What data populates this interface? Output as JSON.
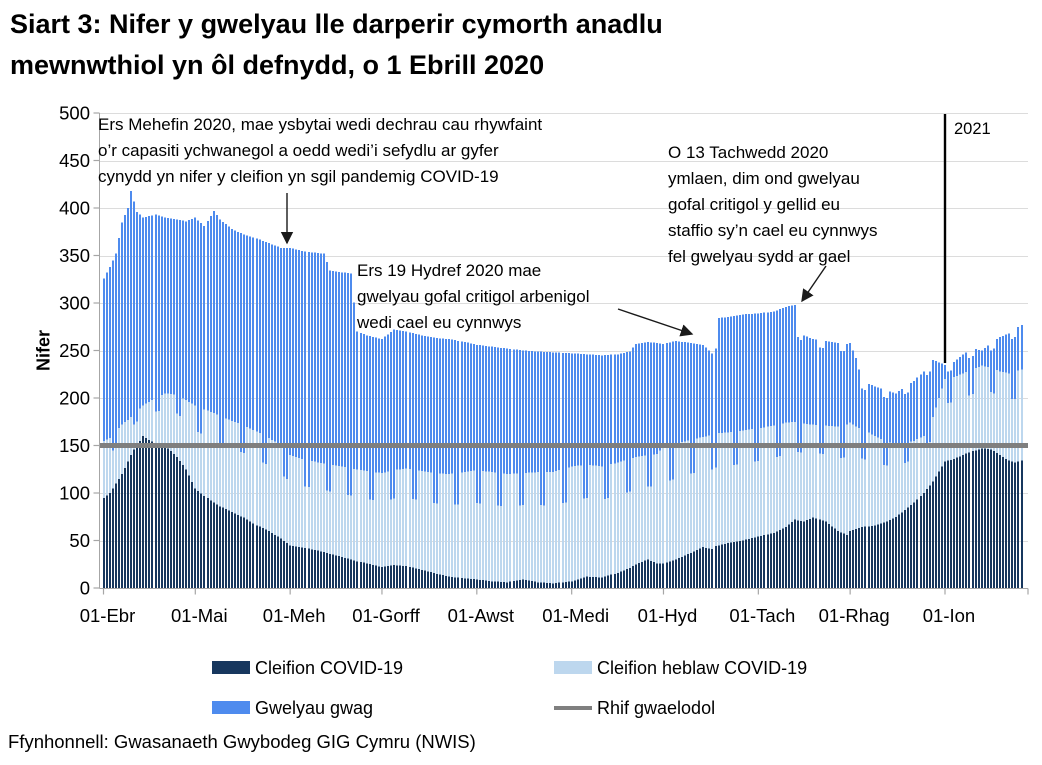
{
  "title": {
    "line1": "Siart 3: Nifer y gwelyau lle darperir cymorth anadlu",
    "line2": "mewnwthiol yn ôl defnydd, o 1 Ebrill 2020"
  },
  "source": {
    "text": "Ffynhonnell: Gwasanaeth Gwybodeg GIG Cymru (NWIS)"
  },
  "annotations": [
    {
      "lines": [
        "Ers Mehefin 2020, mae ysbytai wedi dechrau cau rhywfaint",
        "o’r capasiti ychwanegol a oedd wedi’i sefydlu ar gyfer",
        "cynydd yn nifer y cleifion yn sgil pandemig COVID-19"
      ]
    },
    {
      "lines": [
        "Ers 19 Hydref 2020 mae",
        "gwelyau gofal critigol arbenigol",
        "wedi cael eu cynnwys"
      ]
    },
    {
      "lines": [
        "O 13 Tachwedd 2020",
        "ymlaen, dim ond gwelyau",
        "gofal critigol y gellid eu",
        "staffio sy’n cael eu cynnwys",
        "fel gwelyau sydd ar gael"
      ]
    }
  ],
  "legend": {
    "items": [
      {
        "label": "Cleifion COVID-19",
        "color": "#17375E",
        "type": "box"
      },
      {
        "label": "Cleifion heblaw COVID-19",
        "color": "#BDD7EE",
        "type": "box"
      },
      {
        "label": "Gwelyau gwag",
        "color": "#4E8BEE",
        "type": "box"
      },
      {
        "label": "Rhif gwaelodol",
        "color": "#7F7F7F",
        "type": "line"
      }
    ]
  },
  "chart_data": {
    "type": "bar",
    "stacked": true,
    "title": "Siart 3: Nifer y gwelyau lle darperir cymorth anadlu mewnwthiol yn ôl defnydd, o 1 Ebrill 2020",
    "ylabel": "Nifer",
    "ylim": [
      0,
      500
    ],
    "ytick_step": 50,
    "grid": "horizontal",
    "legend_position": "bottom",
    "x_tick_labels": [
      "01-Ebr",
      "01-Mai",
      "01-Meh",
      "01-Gorff",
      "01-Awst",
      "01-Medi",
      "01-Hyd",
      "01-Tach",
      "01-Rhag",
      "01-Ion"
    ],
    "x_tick_day_offsets": [
      0,
      30,
      61,
      91,
      122,
      153,
      183,
      214,
      244,
      275
    ],
    "days_total": 301,
    "series": [
      {
        "name": "Cleifion COVID-19",
        "color": "#17375E",
        "position": "bottom"
      },
      {
        "name": "Cleifion heblaw COVID-19",
        "color": "#BDD7EE",
        "position": "middle"
      },
      {
        "name": "Gwelyau gwag",
        "color": "#4E8BEE",
        "position": "top"
      }
    ],
    "baseline": {
      "name": "Rhif gwaelodol",
      "color": "#7F7F7F",
      "value": 150
    },
    "year_marker": {
      "label": "2021",
      "day": 275
    },
    "keyframes_format": [
      "day",
      "cleifion_covid",
      "cleifion_covid_plus_heblaw",
      "cyfanswm_gwelyau"
    ],
    "keyframes": [
      [
        0,
        95,
        155,
        326
      ],
      [
        2,
        100,
        158,
        338
      ],
      [
        4,
        110,
        165,
        352
      ],
      [
        6,
        120,
        172,
        385
      ],
      [
        8,
        133,
        177,
        400
      ],
      [
        9,
        140,
        180,
        418
      ],
      [
        10,
        146,
        183,
        407
      ],
      [
        11,
        150,
        186,
        396
      ],
      [
        13,
        160,
        192,
        390
      ],
      [
        17,
        152,
        200,
        393
      ],
      [
        20,
        150,
        205,
        390
      ],
      [
        24,
        138,
        203,
        388
      ],
      [
        27,
        125,
        198,
        386
      ],
      [
        30,
        105,
        192,
        390
      ],
      [
        33,
        97,
        188,
        381
      ],
      [
        36,
        90,
        184,
        397
      ],
      [
        38,
        86,
        181,
        388
      ],
      [
        42,
        80,
        176,
        378
      ],
      [
        46,
        74,
        171,
        372
      ],
      [
        50,
        66,
        165,
        368
      ],
      [
        54,
        60,
        158,
        363
      ],
      [
        58,
        52,
        150,
        358
      ],
      [
        61,
        45,
        140,
        358
      ],
      [
        66,
        42,
        135,
        354
      ],
      [
        72,
        38,
        131,
        352
      ],
      [
        74,
        36,
        130,
        334
      ],
      [
        81,
        30,
        126,
        331
      ],
      [
        83,
        28,
        125,
        270
      ],
      [
        86,
        26,
        123,
        266
      ],
      [
        91,
        22,
        121,
        262
      ],
      [
        95,
        24,
        124,
        272
      ],
      [
        99,
        23,
        126,
        270
      ],
      [
        104,
        19,
        123,
        266
      ],
      [
        109,
        15,
        121,
        263
      ],
      [
        113,
        12,
        120,
        262
      ],
      [
        118,
        10,
        122,
        259
      ],
      [
        122,
        9,
        124,
        256
      ],
      [
        127,
        7,
        122,
        254
      ],
      [
        132,
        6,
        120,
        252
      ],
      [
        137,
        9,
        121,
        250
      ],
      [
        142,
        6,
        122,
        249
      ],
      [
        147,
        5,
        122,
        248
      ],
      [
        153,
        7,
        128,
        247
      ],
      [
        158,
        12,
        130,
        246
      ],
      [
        163,
        11,
        128,
        245
      ],
      [
        168,
        16,
        132,
        246
      ],
      [
        172,
        21,
        136,
        249
      ],
      [
        174,
        25,
        138,
        257
      ],
      [
        178,
        30,
        140,
        259
      ],
      [
        181,
        26,
        141,
        258
      ],
      [
        183,
        26,
        148,
        257
      ],
      [
        187,
        30,
        152,
        260
      ],
      [
        192,
        37,
        156,
        258
      ],
      [
        196,
        43,
        159,
        256
      ],
      [
        199,
        41,
        161,
        247
      ],
      [
        200,
        44,
        162,
        252
      ],
      [
        201,
        45,
        163,
        284
      ],
      [
        205,
        48,
        164,
        286
      ],
      [
        209,
        50,
        166,
        288
      ],
      [
        214,
        54,
        168,
        289
      ],
      [
        219,
        58,
        171,
        291
      ],
      [
        223,
        64,
        174,
        296
      ],
      [
        226,
        72,
        175,
        298
      ],
      [
        227,
        71,
        174,
        272
      ],
      [
        229,
        70,
        173,
        266
      ],
      [
        232,
        74,
        172,
        262
      ],
      [
        236,
        70,
        171,
        260
      ],
      [
        240,
        60,
        170,
        258
      ],
      [
        243,
        56,
        172,
        257
      ],
      [
        244,
        60,
        174,
        258
      ],
      [
        246,
        62,
        170,
        242
      ],
      [
        248,
        64,
        167,
        218
      ],
      [
        252,
        66,
        160,
        212
      ],
      [
        256,
        70,
        154,
        208
      ],
      [
        259,
        75,
        152,
        205
      ],
      [
        262,
        82,
        153,
        212
      ],
      [
        265,
        90,
        155,
        218
      ],
      [
        268,
        100,
        160,
        228
      ],
      [
        271,
        112,
        180,
        240
      ],
      [
        275,
        133,
        220,
        235
      ],
      [
        278,
        136,
        222,
        238
      ],
      [
        281,
        140,
        226,
        246
      ],
      [
        284,
        144,
        230,
        252
      ],
      [
        287,
        147,
        234,
        250
      ],
      [
        290,
        146,
        232,
        258
      ],
      [
        293,
        140,
        228,
        264
      ],
      [
        296,
        134,
        226,
        268
      ],
      [
        298,
        132,
        228,
        272
      ],
      [
        300,
        134,
        230,
        277
      ]
    ],
    "weekend_effect": {
      "weekend_days_mod7": [
        3,
        4
      ],
      "noncovid_factor": 0.7,
      "total_offset_after_day": 226,
      "total_offset": -8
    }
  }
}
